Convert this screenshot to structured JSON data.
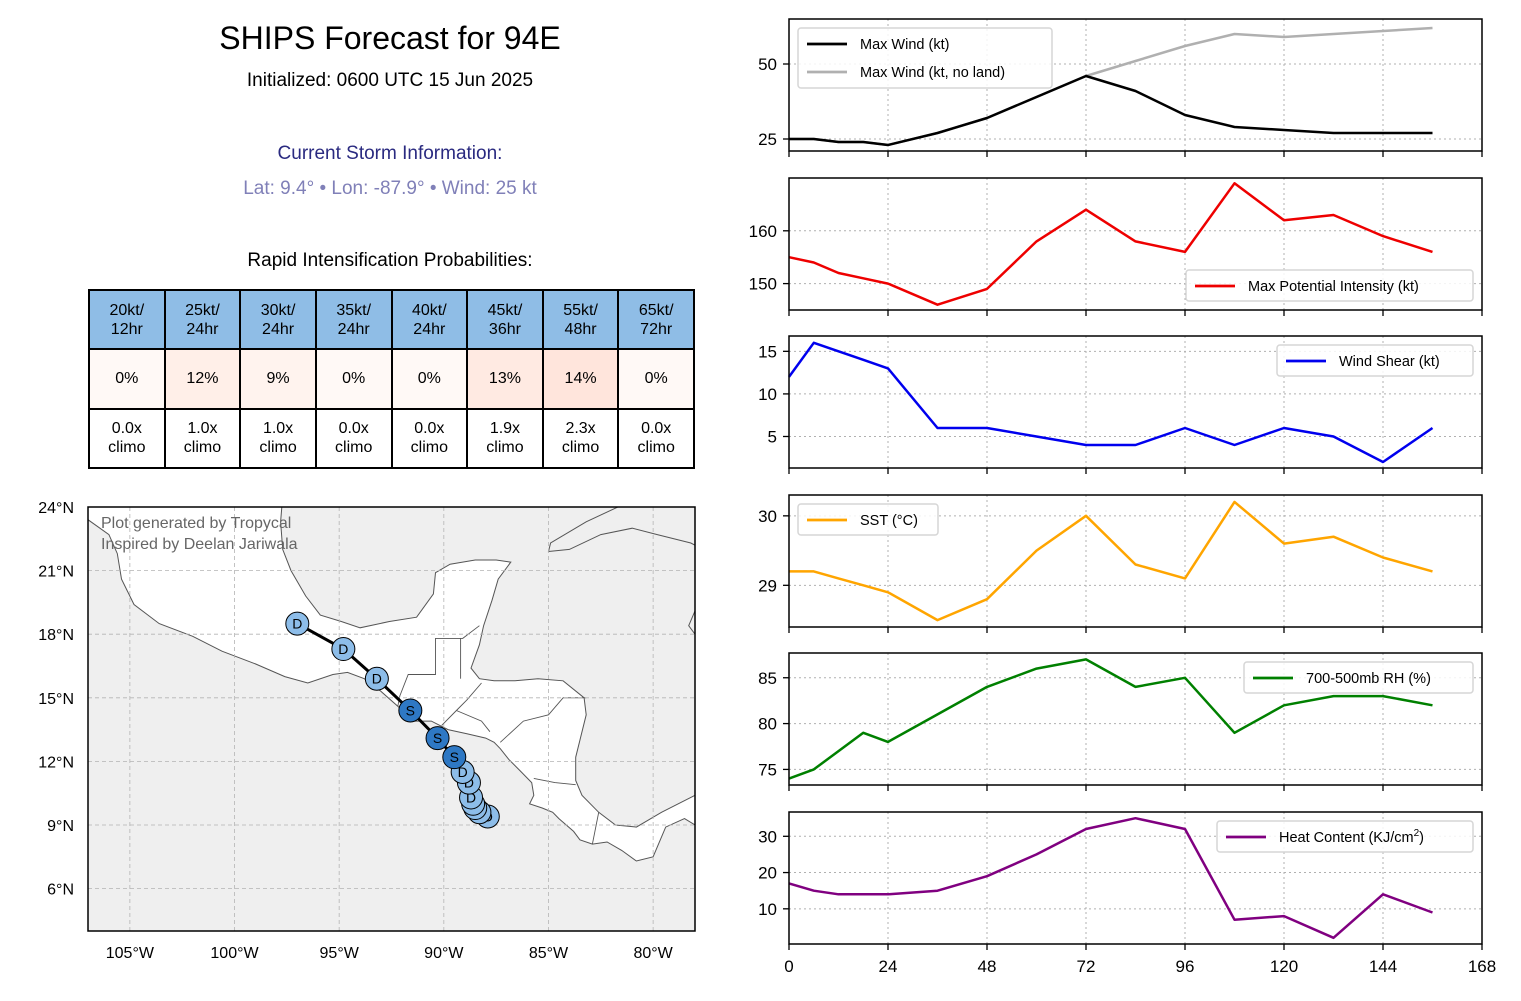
{
  "header": {
    "title": "SHIPS Forecast for 94E",
    "subtitle": "Initialized: 0600 UTC 15 Jun 2025",
    "storm_heading": "Current Storm Information:",
    "storm_info": "Lat: 9.4°  •  Lon: -87.9°  •  Wind: 25 kt"
  },
  "ri": {
    "title": "Rapid Intensification Probabilities:",
    "columns": [
      {
        "l1": "20kt/",
        "l2": "12hr",
        "prob": "0%",
        "c1": "0.0x",
        "c2": "climo",
        "color": "#fff9f6"
      },
      {
        "l1": "25kt/",
        "l2": "24hr",
        "prob": "12%",
        "c1": "1.0x",
        "c2": "climo",
        "color": "#ffefe8"
      },
      {
        "l1": "30kt/",
        "l2": "24hr",
        "prob": "9%",
        "c1": "1.0x",
        "c2": "climo",
        "color": "#fff3ee"
      },
      {
        "l1": "35kt/",
        "l2": "24hr",
        "prob": "0%",
        "c1": "0.0x",
        "c2": "climo",
        "color": "#fff9f6"
      },
      {
        "l1": "40kt/",
        "l2": "24hr",
        "prob": "0%",
        "c1": "0.0x",
        "c2": "climo",
        "color": "#fff9f6"
      },
      {
        "l1": "45kt/",
        "l2": "36hr",
        "prob": "13%",
        "c1": "1.9x",
        "c2": "climo",
        "color": "#ffeae2"
      },
      {
        "l1": "55kt/",
        "l2": "48hr",
        "prob": "14%",
        "c1": "2.3x",
        "c2": "climo",
        "color": "#ffe5dc"
      },
      {
        "l1": "65kt/",
        "l2": "72hr",
        "prob": "0%",
        "c1": "0.0x",
        "c2": "climo",
        "color": "#fff9f6"
      }
    ]
  },
  "map": {
    "credit": [
      "Plot generated by Tropycal",
      "Inspired by Deelan Jariwala"
    ],
    "lon_range": [
      -107,
      -78
    ],
    "lat_range": [
      4,
      24
    ],
    "lon_ticks": [
      {
        "v": -105,
        "label": "105°W"
      },
      {
        "v": -100,
        "label": "100°W"
      },
      {
        "v": -95,
        "label": "95°W"
      },
      {
        "v": -90,
        "label": "90°W"
      },
      {
        "v": -85,
        "label": "85°W"
      },
      {
        "v": -80,
        "label": "80°W"
      }
    ],
    "lat_ticks": [
      {
        "v": 24,
        "label": "24°N"
      },
      {
        "v": 21,
        "label": "21°N"
      },
      {
        "v": 18,
        "label": "18°N"
      },
      {
        "v": 15,
        "label": "15°N"
      },
      {
        "v": 12,
        "label": "12°N"
      },
      {
        "v": 9,
        "label": "9°N"
      },
      {
        "v": 6,
        "label": "6°N"
      }
    ],
    "colors": {
      "depression": "#8dbde9",
      "storm": "#2e78c4",
      "land": "#efefef",
      "coast": "#555555"
    },
    "track": [
      {
        "lon": -87.9,
        "lat": 9.4,
        "cat": "D"
      },
      {
        "lon": -88.3,
        "lat": 9.6,
        "cat": "D"
      },
      {
        "lon": -88.5,
        "lat": 9.8,
        "cat": "D"
      },
      {
        "lon": -88.6,
        "lat": 10.0,
        "cat": "D"
      },
      {
        "lon": -88.7,
        "lat": 10.3,
        "cat": "D"
      },
      {
        "lon": -88.8,
        "lat": 11.0,
        "cat": "D"
      },
      {
        "lon": -89.1,
        "lat": 11.5,
        "cat": "D"
      },
      {
        "lon": -89.5,
        "lat": 12.2,
        "cat": "S"
      },
      {
        "lon": -90.3,
        "lat": 13.1,
        "cat": "S"
      },
      {
        "lon": -91.6,
        "lat": 14.4,
        "cat": "S"
      },
      {
        "lon": -93.2,
        "lat": 15.9,
        "cat": "D"
      },
      {
        "lon": -94.8,
        "lat": 17.3,
        "cat": "D"
      },
      {
        "lon": -97.0,
        "lat": 18.5,
        "cat": "D"
      }
    ]
  },
  "chart_data": [
    {
      "type": "line",
      "x": [
        0,
        6,
        12,
        18,
        24,
        36,
        48,
        60,
        72,
        84,
        96,
        108,
        120,
        132,
        144,
        156
      ],
      "series": [
        {
          "name": "Max Wind (kt)",
          "color": "#000000",
          "values": [
            25,
            25,
            24,
            24,
            23,
            27,
            32,
            39,
            46,
            41,
            33,
            29,
            28,
            27,
            27,
            27
          ]
        },
        {
          "name": "Max Wind (kt, no land)",
          "color": "#b0b0b0",
          "values": [
            25,
            25,
            24,
            24,
            23,
            27,
            32,
            39,
            46,
            51,
            56,
            60,
            59,
            60,
            61,
            62
          ]
        }
      ],
      "ylim": [
        21,
        65
      ],
      "yticks": [
        25,
        50
      ],
      "xlim": [
        0,
        168
      ],
      "legend": "top-left",
      "grid": true
    },
    {
      "type": "line",
      "x": [
        0,
        6,
        12,
        18,
        24,
        36,
        48,
        60,
        72,
        84,
        96,
        108,
        120,
        132,
        144,
        156
      ],
      "series": [
        {
          "name": "Max Potential Intensity (kt)",
          "color": "#ee0000",
          "values": [
            155,
            154,
            152,
            151,
            150,
            146,
            149,
            158,
            164,
            158,
            156,
            169,
            162,
            163,
            159,
            156
          ]
        }
      ],
      "ylim": [
        145,
        170
      ],
      "yticks": [
        150,
        160
      ],
      "xlim": [
        0,
        168
      ],
      "legend": "bottom-right",
      "grid": true
    },
    {
      "type": "line",
      "x": [
        0,
        6,
        12,
        18,
        24,
        36,
        48,
        60,
        72,
        84,
        96,
        108,
        120,
        132,
        144,
        156
      ],
      "series": [
        {
          "name": "Wind Shear (kt)",
          "color": "#0000ee",
          "values": [
            12,
            16,
            15,
            14,
            13,
            6,
            6,
            5,
            4,
            4,
            6,
            4,
            6,
            5,
            2,
            6
          ]
        }
      ],
      "ylim": [
        1.3,
        16.8
      ],
      "yticks": [
        5,
        10,
        15
      ],
      "xlim": [
        0,
        168
      ],
      "legend": "top-right",
      "grid": true
    },
    {
      "type": "line",
      "x": [
        0,
        6,
        12,
        18,
        24,
        36,
        48,
        60,
        72,
        84,
        96,
        108,
        120,
        132,
        144,
        156
      ],
      "series": [
        {
          "name": "SST (°C)",
          "color": "#ffa500",
          "values": [
            29.2,
            29.2,
            29.1,
            29.0,
            28.9,
            28.5,
            28.8,
            29.5,
            30.0,
            29.3,
            29.1,
            30.2,
            29.6,
            29.7,
            29.4,
            29.2
          ]
        }
      ],
      "ylim": [
        28.4,
        30.3
      ],
      "yticks": [
        29,
        30
      ],
      "xlim": [
        0,
        168
      ],
      "legend": "top-left",
      "grid": true
    },
    {
      "type": "line",
      "x": [
        0,
        6,
        12,
        18,
        24,
        36,
        48,
        60,
        72,
        84,
        96,
        108,
        120,
        132,
        144,
        156
      ],
      "series": [
        {
          "name": "700-500mb RH (%)",
          "color": "#008000",
          "values": [
            74,
            75,
            77,
            79,
            78,
            81,
            84,
            86,
            87,
            84,
            85,
            79,
            82,
            83,
            83,
            82
          ]
        }
      ],
      "ylim": [
        73.3,
        87.7
      ],
      "yticks": [
        75,
        80,
        85
      ],
      "xlim": [
        0,
        168
      ],
      "legend": "top-right",
      "grid": true
    },
    {
      "type": "line",
      "x": [
        0,
        6,
        12,
        18,
        24,
        36,
        48,
        60,
        72,
        84,
        96,
        108,
        120,
        132,
        144,
        156
      ],
      "series": [
        {
          "name": "Heat Content (KJ/cm",
          "name_sup": "2",
          "name_end": ")",
          "color": "#800080",
          "values": [
            17,
            15,
            14,
            14,
            14,
            15,
            19,
            25,
            32,
            35,
            32,
            7,
            8,
            2,
            14,
            9
          ]
        }
      ],
      "ylim": [
        0.3,
        36.7
      ],
      "yticks": [
        10,
        20,
        30
      ],
      "xlim": [
        0,
        168
      ],
      "xticks": [
        0,
        24,
        48,
        72,
        96,
        120,
        144,
        168
      ],
      "legend": "top-right",
      "grid": true
    }
  ]
}
